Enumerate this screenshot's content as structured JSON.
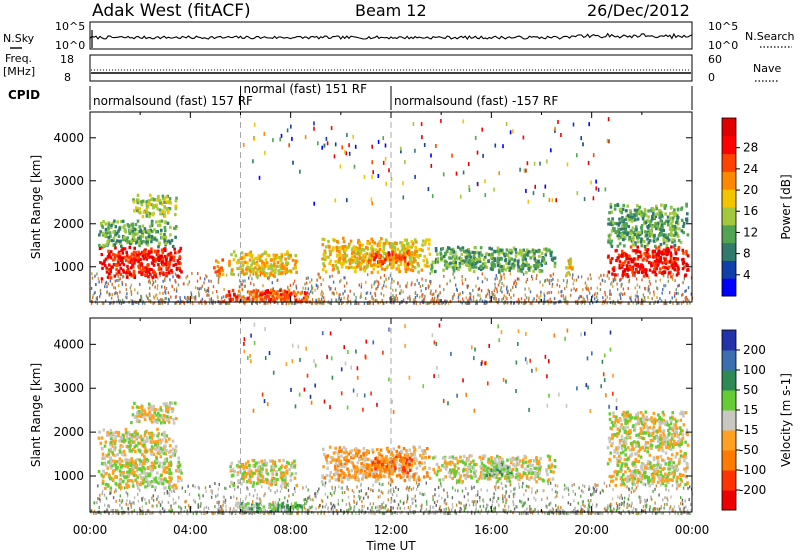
{
  "header": {
    "title": "Adak West (fitACF)",
    "beam": "Beam 12",
    "date": "26/Dec/2012"
  },
  "status_panels": {
    "nsky_label": "N.Sky",
    "nsky_range": [
      "10^0",
      "10^5"
    ],
    "nsearch_label": "N.Search",
    "nsearch_range": [
      "10^0",
      "10^5"
    ],
    "freq_label": "Freq.",
    "freq_unit": "[MHz]",
    "freq_range": [
      8,
      18
    ],
    "nave_label": "Nave",
    "nave_range": [
      0,
      60
    ],
    "cpid_label": "CPID",
    "cpid_segments": [
      {
        "label": "normalsound (fast) 157 RF",
        "start_hour": 0,
        "end_hour": 6
      },
      {
        "label": "normal (fast) 151 RF",
        "start_hour": 6,
        "end_hour": 12
      },
      {
        "label": "normalsound (fast) -157 RF",
        "start_hour": 12,
        "end_hour": 24
      }
    ]
  },
  "chart_data": [
    {
      "type": "heatmap",
      "title": "Power",
      "ylabel": "Slant Range [km]",
      "x_range_hours": [
        0,
        24
      ],
      "ylim": [
        180,
        4600
      ],
      "yticks": [
        1000,
        2000,
        3000,
        4000
      ],
      "colorbar": {
        "label": "Power [dB]",
        "ticks": [
          "4",
          "8",
          "12",
          "16",
          "20",
          "24",
          "28"
        ],
        "colors": [
          "#0000ff",
          "#0f3fa8",
          "#2f7a6a",
          "#51a451",
          "#a2c93d",
          "#f2c500",
          "#ff8800",
          "#ff4400",
          "#ff0000",
          "#e00000"
        ]
      },
      "echo_regions": [
        {
          "x0": 0.3,
          "x1": 3.6,
          "y0": 750,
          "y1": 1500,
          "level": 8
        },
        {
          "x0": 0.3,
          "x1": 3.4,
          "y0": 1500,
          "y1": 2100,
          "level": 3
        },
        {
          "x0": 1.6,
          "x1": 3.4,
          "y0": 2200,
          "y1": 2700,
          "level": 4
        },
        {
          "x0": 4.9,
          "x1": 5.3,
          "y0": 800,
          "y1": 1200,
          "level": 6
        },
        {
          "x0": 5.5,
          "x1": 8.2,
          "y0": 800,
          "y1": 1400,
          "level": 5
        },
        {
          "x0": 5.2,
          "x1": 8.6,
          "y0": 220,
          "y1": 500,
          "level": 7
        },
        {
          "x0": 9.2,
          "x1": 13.5,
          "y0": 900,
          "y1": 1700,
          "level": 5
        },
        {
          "x0": 11.0,
          "x1": 12.8,
          "y0": 1100,
          "y1": 1400,
          "level": 7
        },
        {
          "x0": 13.5,
          "x1": 18.5,
          "y0": 900,
          "y1": 1500,
          "level": 3
        },
        {
          "x0": 18.9,
          "x1": 19.2,
          "y0": 800,
          "y1": 1300,
          "level": 5
        },
        {
          "x0": 20.6,
          "x1": 23.8,
          "y0": 800,
          "y1": 1500,
          "level": 8
        },
        {
          "x0": 20.6,
          "x1": 23.8,
          "y0": 1500,
          "y1": 2500,
          "level": 3
        }
      ]
    },
    {
      "type": "heatmap",
      "title": "Velocity",
      "ylabel": "Slant Range [km]",
      "xlabel": "Time UT",
      "x_range_hours": [
        0,
        24
      ],
      "ylim": [
        180,
        4600
      ],
      "yticks": [
        1000,
        2000,
        3000,
        4000
      ],
      "xticks": [
        "00:00",
        "04:00",
        "08:00",
        "12:00",
        "16:00",
        "20:00",
        "00:00"
      ],
      "colorbar": {
        "label": "Velocity [m s-1]",
        "ticks": [
          "200",
          "100",
          "50",
          "15",
          "-15",
          "-50",
          "-100",
          "-200"
        ],
        "colors": [
          "#2233aa",
          "#3b6fb0",
          "#2d8a55",
          "#66cc33",
          "#c8c8c0",
          "#ffa020",
          "#ff7a00",
          "#ff3300",
          "#ee0000"
        ]
      },
      "echo_regions": [
        {
          "x0": 0.3,
          "x1": 3.6,
          "y0": 750,
          "y1": 1500,
          "level": 4
        },
        {
          "x0": 0.3,
          "x1": 3.4,
          "y0": 1500,
          "y1": 2100,
          "level": 4
        },
        {
          "x0": 1.6,
          "x1": 3.4,
          "y0": 2200,
          "y1": 2700,
          "level": 4
        },
        {
          "x0": 5.5,
          "x1": 8.2,
          "y0": 800,
          "y1": 1400,
          "level": 4
        },
        {
          "x0": 5.6,
          "x1": 8.6,
          "y0": 200,
          "y1": 420,
          "level": 3
        },
        {
          "x0": 9.2,
          "x1": 13.5,
          "y0": 900,
          "y1": 1700,
          "level": 5
        },
        {
          "x0": 11.0,
          "x1": 12.8,
          "y0": 1100,
          "y1": 1500,
          "level": 6
        },
        {
          "x0": 13.5,
          "x1": 18.5,
          "y0": 900,
          "y1": 1500,
          "level": 4
        },
        {
          "x0": 15.5,
          "x1": 16.8,
          "y0": 1000,
          "y1": 1300,
          "level": 3
        },
        {
          "x0": 20.6,
          "x1": 23.8,
          "y0": 800,
          "y1": 1500,
          "level": 4
        },
        {
          "x0": 20.6,
          "x1": 23.8,
          "y0": 1500,
          "y1": 2500,
          "level": 4
        }
      ]
    }
  ]
}
